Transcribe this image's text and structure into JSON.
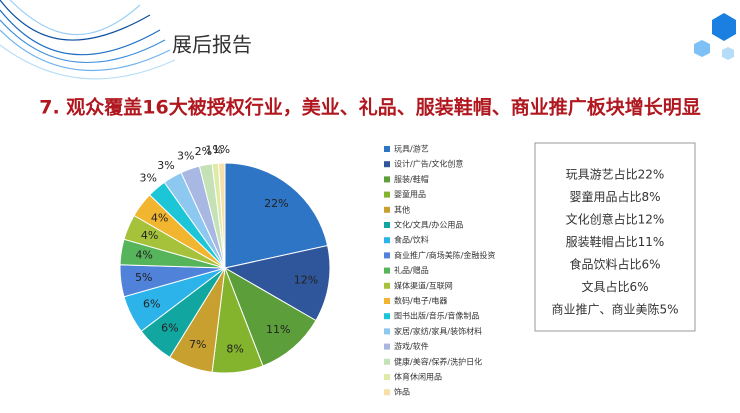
{
  "header": {
    "title": "展后报告"
  },
  "chart_data": {
    "type": "pie",
    "title": "7. 观众覆盖16大被授权行业，美业、礼品、服装鞋帽、商业推广板块增长明显",
    "categories": [
      "玩具/游艺",
      "设计/广告/文化创意",
      "服装/鞋帽",
      "婴童用品",
      "其他",
      "文化/文具/办公用品",
      "食品/饮料",
      "商业推广/商场美陈/金融投资",
      "礼品/赠品",
      "媒体渠道/互联网",
      "数码/电子/电器",
      "图书出版/音乐/音像制品",
      "家居/家纺/家具/装饰材料",
      "游戏/软件",
      "健康/美容/保养/洗护日化",
      "体育休闲用品",
      "饰品"
    ],
    "values": [
      22,
      12,
      11,
      8,
      7,
      6,
      6,
      5,
      4,
      4,
      4,
      3,
      3,
      3,
      2,
      1,
      1
    ],
    "value_labels": [
      "22%",
      "12%",
      "11%",
      "8%",
      "7%",
      "6%",
      "6%",
      "5%",
      "4%",
      "4%",
      "4%",
      "3%",
      "3%",
      "3%",
      "2%",
      "1%",
      "1%"
    ],
    "colors": [
      "#2E75C6",
      "#2F559A",
      "#5C9E3A",
      "#84B32E",
      "#C8A030",
      "#12A6A0",
      "#2BB3EA",
      "#4F82D8",
      "#56B45A",
      "#A5C23A",
      "#F2B530",
      "#1CC6D6",
      "#8CC8F0",
      "#A8B8E2",
      "#C5E2B6",
      "#DDEBA6",
      "#F6DFA8"
    ]
  },
  "notes": {
    "lines": [
      "玩具游艺占比22%",
      "婴童用品占比8%",
      "文化创意占比12%",
      "服装鞋帽占比11%",
      "食品饮料占比6%",
      "文具占比6%",
      "商业推广、商业美陈5%"
    ]
  }
}
